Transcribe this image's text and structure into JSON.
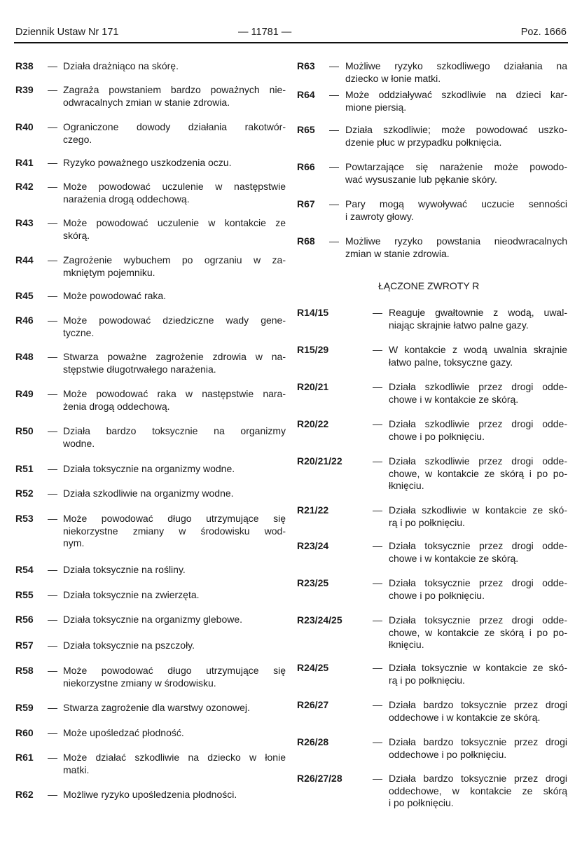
{
  "header": {
    "left": "Dziennik Ustaw Nr 171",
    "center": "— 11781 —",
    "right": "Poz. 1666"
  },
  "left_column": [
    {
      "code": "R38",
      "lines": [
        "Działa drażniąco na skórę."
      ]
    },
    {
      "code": "R39",
      "lines": [
        "Zagraża powstaniem bardzo poważnych nie-",
        "odwracalnych zmian w stanie zdrowia."
      ]
    },
    {
      "code": "R40",
      "lines": [
        "Ograniczone dowody działania rakotwór-",
        "czego."
      ]
    },
    {
      "code": "R41",
      "lines": [
        "Ryzyko poważnego uszkodzenia oczu."
      ]
    },
    {
      "code": "R42",
      "lines": [
        "Może powodować uczulenie w następstwie",
        "narażenia drogą oddechową."
      ]
    },
    {
      "code": "R43",
      "lines": [
        "Może powodować uczulenie w kontakcie ze",
        "skórą."
      ]
    },
    {
      "code": "R44",
      "lines": [
        "Zagrożenie wybuchem po ogrzaniu w za-",
        "mkniętym pojemniku."
      ]
    },
    {
      "code": "R45",
      "lines": [
        "Może powodować raka."
      ]
    },
    {
      "code": "R46",
      "lines": [
        "Może powodować dziedziczne wady gene-",
        "tyczne."
      ]
    },
    {
      "code": "R48",
      "lines": [
        "Stwarza poważne zagrożenie zdrowia w na-",
        "stępstwie długotrwałego narażenia."
      ]
    },
    {
      "code": "R49",
      "lines": [
        "Może powodować raka w następstwie nara-",
        "żenia drogą oddechową."
      ]
    },
    {
      "code": "R50",
      "lines": [
        "Działa bardzo toksycznie na organizmy",
        "wodne."
      ]
    },
    {
      "code": "R51",
      "lines": [
        "Działa toksycznie na organizmy wodne."
      ]
    },
    {
      "code": "R52",
      "lines": [
        "Działa szkodliwie na organizmy wodne."
      ]
    },
    {
      "code": "R53",
      "lines": [
        "Może powodować długo utrzymujące się",
        "niekorzystne zmiany w środowisku wod-",
        "nym."
      ]
    },
    {
      "code": "R54",
      "lines": [
        "Działa toksycznie na rośliny."
      ]
    },
    {
      "code": "R55",
      "lines": [
        "Działa toksycznie na zwierzęta."
      ]
    },
    {
      "code": "R56",
      "lines": [
        "Działa toksycznie na organizmy glebowe."
      ]
    },
    {
      "code": "R57",
      "lines": [
        "Działa toksycznie na pszczoły."
      ]
    },
    {
      "code": "R58",
      "lines": [
        "Może powodować długo utrzymujące się",
        "niekorzystne zmiany w środowisku."
      ]
    },
    {
      "code": "R59",
      "lines": [
        "Stwarza zagrożenie dla warstwy ozonowej."
      ]
    },
    {
      "code": "R60",
      "lines": [
        "Może upośledzać płodność."
      ]
    },
    {
      "code": "R61",
      "lines": [
        "Może działać szkodliwie na dziecko w łonie",
        "matki."
      ]
    },
    {
      "code": "R62",
      "lines": [
        "Możliwe ryzyko upośledzenia płodności."
      ]
    }
  ],
  "right_column": [
    {
      "code": "R63",
      "lines": [
        "Możliwe ryzyko szkodliwego działania na",
        "dziecko w łonie matki."
      ]
    },
    {
      "code": "R64",
      "lines": [
        "Może oddziaływać szkodliwie na dzieci kar-",
        "mione piersią."
      ]
    },
    {
      "code": "R65",
      "lines": [
        "Działa szkodliwie; może powodować uszko-",
        "dzenie płuc w przypadku połknięcia."
      ]
    },
    {
      "code": "R66",
      "lines": [
        "Powtarzające się narażenie może powodo-",
        "wać wysuszanie lub pękanie skóry."
      ]
    },
    {
      "code": "R67",
      "lines": [
        "Pary mogą wywoływać uczucie senności",
        "i zawroty głowy."
      ]
    },
    {
      "code": "R68",
      "lines": [
        "Możliwe ryzyko powstania nieodwracalnych",
        "zmian w stanie zdrowia."
      ]
    }
  ],
  "combined_section_title": "ŁĄCZONE ZWROTY R",
  "combined": [
    {
      "code": "R14/15",
      "lines": [
        "Reaguje gwałtownie z wodą, uwal-",
        "niając skrajnie łatwo palne gazy."
      ]
    },
    {
      "code": "R15/29",
      "lines": [
        "W kontakcie z wodą uwalnia skrajnie",
        "łatwo palne, toksyczne gazy."
      ]
    },
    {
      "code": "R20/21",
      "lines": [
        "Działa szkodliwie przez drogi odde-",
        "chowe i w kontakcie ze skórą."
      ]
    },
    {
      "code": "R20/22",
      "lines": [
        "Działa szkodliwie przez drogi odde-",
        "chowe i po połknięciu."
      ]
    },
    {
      "code": "R20/21/22",
      "lines": [
        "Działa szkodliwie przez drogi odde-",
        "chowe, w kontakcie ze skórą i po po-",
        "łknięciu."
      ]
    },
    {
      "code": "R21/22",
      "lines": [
        "Działa szkodliwie w kontakcie ze skó-",
        "rą i po połknięciu."
      ]
    },
    {
      "code": "R23/24",
      "lines": [
        "Działa toksycznie przez drogi odde-",
        "chowe i w kontakcie ze skórą."
      ]
    },
    {
      "code": "R23/25",
      "lines": [
        "Działa toksycznie przez drogi odde-",
        "chowe i po połknięciu."
      ]
    },
    {
      "code": "R23/24/25",
      "lines": [
        "Działa toksycznie przez drogi odde-",
        "chowe, w kontakcie ze skórą i po po-",
        "łknięciu."
      ]
    },
    {
      "code": "R24/25",
      "lines": [
        "Działa toksycznie w kontakcie ze skó-",
        "rą i po połknięciu."
      ]
    },
    {
      "code": "R26/27",
      "lines": [
        "Działa bardzo toksycznie przez drogi",
        "oddechowe i w kontakcie ze skórą."
      ]
    },
    {
      "code": "R26/28",
      "lines": [
        "Działa bardzo toksycznie przez drogi",
        "oddechowe i po połknięciu."
      ]
    },
    {
      "code": "R26/27/28",
      "lines": [
        "Działa bardzo toksycznie przez drogi",
        "oddechowe, w kontakcie ze skórą",
        "i po połknięciu."
      ]
    }
  ],
  "dash": "—"
}
